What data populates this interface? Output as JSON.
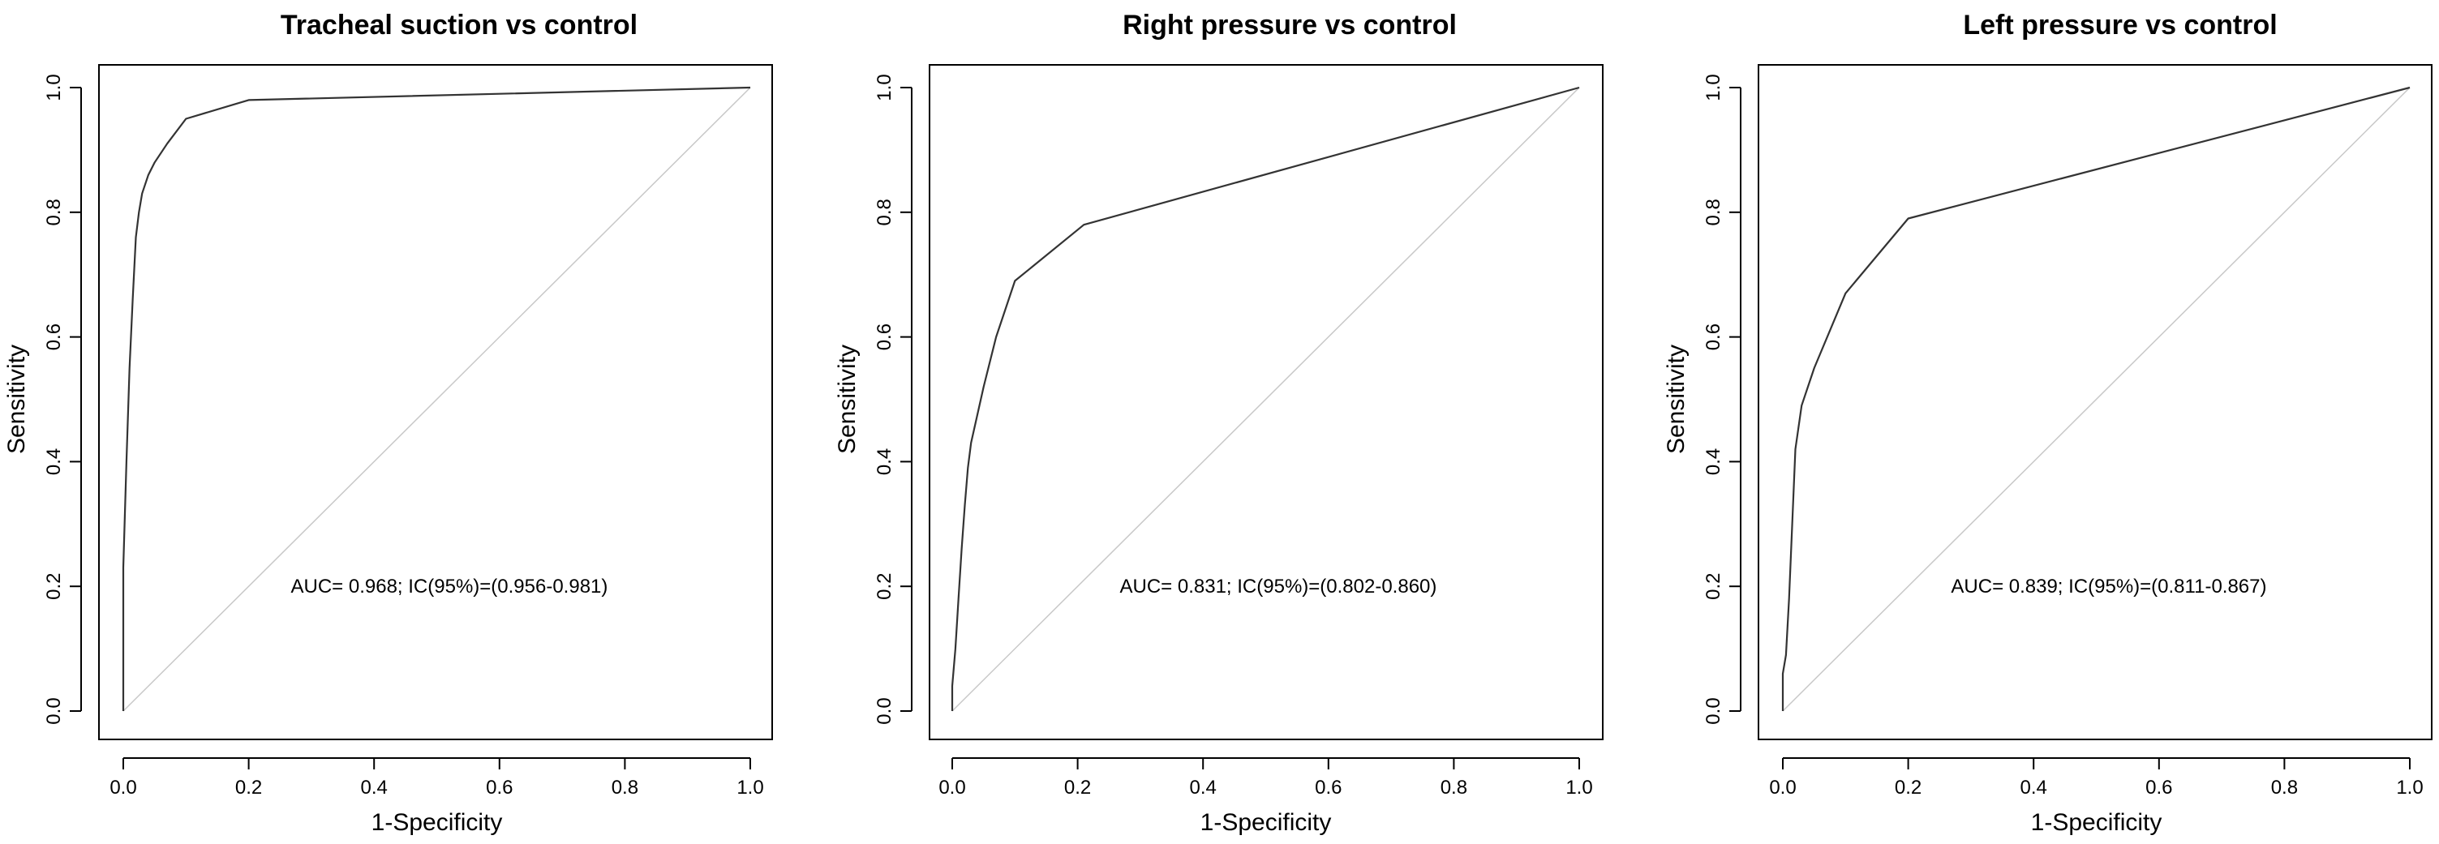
{
  "figure": {
    "background": "#ffffff",
    "curve_color": "#333333",
    "diagonal_color": "#c8c8c8",
    "axis_color": "#000000"
  },
  "chart_data": [
    {
      "type": "line",
      "title": "Tracheal suction vs control",
      "xlabel": "1-Specificity",
      "ylabel": "Sensitivity",
      "xlim": [
        0,
        1
      ],
      "ylim": [
        0,
        1
      ],
      "xticks": [
        "0.0",
        "0.2",
        "0.4",
        "0.6",
        "0.8",
        "1.0"
      ],
      "yticks": [
        "0.0",
        "0.2",
        "0.4",
        "0.6",
        "0.8",
        "1.0"
      ],
      "annotation": "AUC= 0.968; IC(95%)=(0.956-0.981)",
      "grid": false,
      "series": [
        {
          "x": [
            0,
            0,
            0.005,
            0.01,
            0.015,
            0.02,
            0.025,
            0.03,
            0.04,
            0.05,
            0.07,
            0.1,
            0.2,
            1.0
          ],
          "y": [
            0,
            0.23,
            0.4,
            0.55,
            0.66,
            0.76,
            0.8,
            0.83,
            0.86,
            0.88,
            0.91,
            0.95,
            0.98,
            1.0
          ]
        }
      ],
      "reference_line": {
        "x": [
          0,
          1
        ],
        "y": [
          0,
          1
        ]
      }
    },
    {
      "type": "line",
      "title": "Right pressure vs control",
      "xlabel": "1-Specificity",
      "ylabel": "Sensitivity",
      "xlim": [
        0,
        1
      ],
      "ylim": [
        0,
        1
      ],
      "xticks": [
        "0.0",
        "0.2",
        "0.4",
        "0.6",
        "0.8",
        "1.0"
      ],
      "yticks": [
        "0.0",
        "0.2",
        "0.4",
        "0.6",
        "0.8",
        "1.0"
      ],
      "annotation": "AUC= 0.831; IC(95%)=(0.802-0.860)",
      "grid": false,
      "series": [
        {
          "x": [
            0,
            0,
            0.005,
            0.01,
            0.015,
            0.02,
            0.025,
            0.03,
            0.05,
            0.07,
            0.1,
            0.21,
            1.0
          ],
          "y": [
            0,
            0.04,
            0.1,
            0.18,
            0.26,
            0.33,
            0.39,
            0.43,
            0.52,
            0.6,
            0.69,
            0.78,
            1.0
          ]
        }
      ],
      "reference_line": {
        "x": [
          0,
          1
        ],
        "y": [
          0,
          1
        ]
      }
    },
    {
      "type": "line",
      "title": "Left pressure vs control",
      "xlabel": "1-Specificity",
      "ylabel": "Sensitivity",
      "xlim": [
        0,
        1
      ],
      "ylim": [
        0,
        1
      ],
      "xticks": [
        "0.0",
        "0.2",
        "0.4",
        "0.6",
        "0.8",
        "1.0"
      ],
      "yticks": [
        "0.0",
        "0.2",
        "0.4",
        "0.6",
        "0.8",
        "1.0"
      ],
      "annotation": "AUC= 0.839; IC(95%)=(0.811-0.867)",
      "grid": false,
      "series": [
        {
          "x": [
            0,
            0,
            0.005,
            0.01,
            0.015,
            0.02,
            0.03,
            0.05,
            0.1,
            0.2,
            1.0
          ],
          "y": [
            0,
            0.06,
            0.09,
            0.18,
            0.3,
            0.42,
            0.49,
            0.55,
            0.67,
            0.79,
            1.0
          ]
        }
      ],
      "reference_line": {
        "x": [
          0,
          1
        ],
        "y": [
          0,
          1
        ]
      }
    }
  ]
}
